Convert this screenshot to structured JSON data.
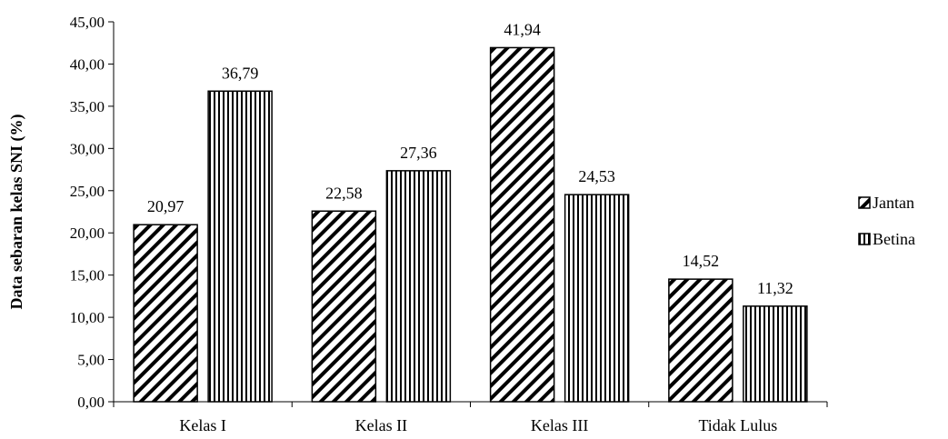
{
  "chart_data": {
    "type": "bar",
    "title": "",
    "xlabel": "",
    "ylabel": "Data sebaran kelas SNI (%)",
    "categories": [
      "Kelas I",
      "Kelas II",
      "Kelas III",
      "Tidak Lulus"
    ],
    "series": [
      {
        "name": "Jantan",
        "values": [
          20.97,
          22.58,
          41.94,
          14.52
        ],
        "labels": [
          "20,97",
          "22,58",
          "41,94",
          "14,52"
        ],
        "pattern": "diagonal-hatch"
      },
      {
        "name": "Betina",
        "values": [
          36.79,
          27.36,
          24.53,
          11.32
        ],
        "labels": [
          "36,79",
          "27,36",
          "24,53",
          "11,32"
        ],
        "pattern": "vertical-hatch"
      }
    ],
    "ylim": [
      0,
      45
    ],
    "yticks": [
      0,
      5,
      10,
      15,
      20,
      25,
      30,
      35,
      40,
      45
    ],
    "ytick_labels": [
      "0,00",
      "5,00",
      "10,00",
      "15,00",
      "20,00",
      "25,00",
      "30,00",
      "35,00",
      "40,00",
      "45,00"
    ],
    "grid": false,
    "legend_position": "right",
    "colors": {
      "fill": "#ffffff",
      "stroke": "#000000",
      "hatch": "#000000"
    }
  }
}
